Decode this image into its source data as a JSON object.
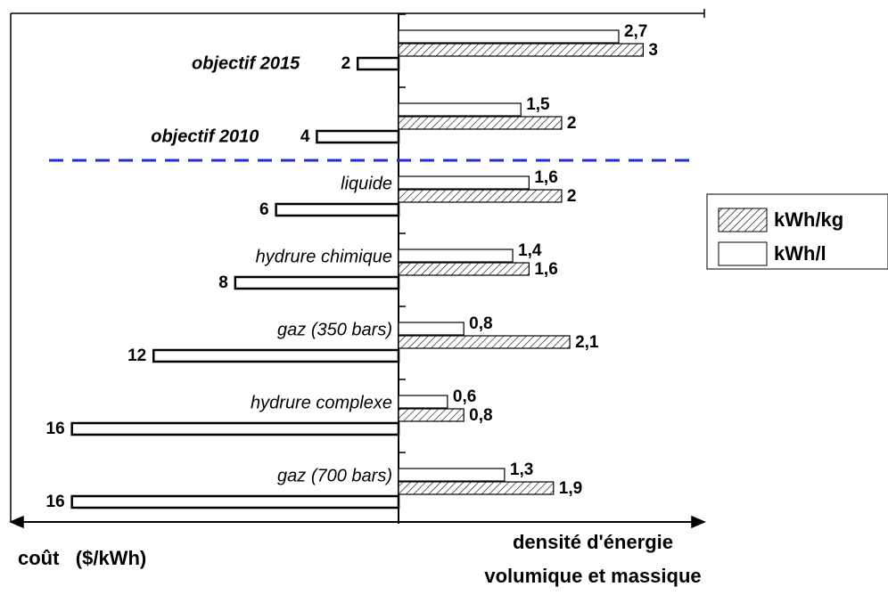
{
  "chart_data": {
    "type": "butterfly-bar",
    "categories": [
      "objectif 2015",
      "objectif 2010",
      "liquide",
      "hydrure chimique",
      "gaz (350 bars)",
      "hydrure complexe",
      "gaz (700 bars)"
    ],
    "cost": {
      "values": [
        2,
        4,
        6,
        8,
        12,
        16,
        16
      ],
      "color": "#000000"
    },
    "series": [
      {
        "name": "kWh/l",
        "color": "#000000",
        "pattern": "none",
        "values": [
          2.7,
          1.5,
          1.6,
          1.4,
          0.8,
          0.6,
          1.3
        ],
        "value_labels": [
          "2,7",
          "1,5",
          "1,6",
          "1,4",
          "0,8",
          "0,6",
          "1,3"
        ]
      },
      {
        "name": "kWh/kg",
        "color": "#000000",
        "pattern": "hatch",
        "values": [
          3,
          2,
          2,
          1.6,
          2.1,
          0.8,
          1.9
        ],
        "value_labels": [
          "3",
          "2",
          "2",
          "1,6",
          "2,1",
          "0,8",
          "1,9"
        ]
      }
    ],
    "xlim": [
      0,
      3.75
    ],
    "x2lim": [
      0,
      19
    ],
    "x2_label": "coût   ($/kWh)",
    "x_label": [
      "densité d'énergie",
      "volumique et massique"
    ],
    "divider_color": "#1f2fd0",
    "legend": "right"
  }
}
